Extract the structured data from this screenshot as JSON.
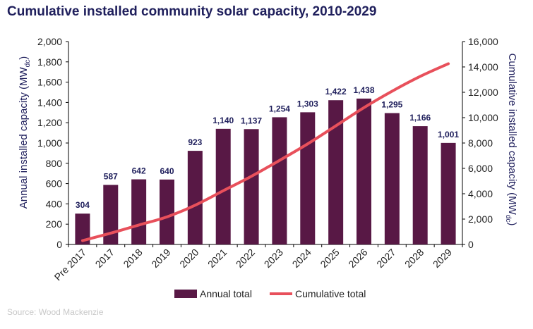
{
  "chart_data": {
    "type": "bar",
    "title": "Cumulative installed community solar capacity, 2010-2029",
    "categories": [
      "Pre 2017",
      "2017",
      "2018",
      "2019",
      "2020",
      "2021",
      "2022",
      "2023",
      "2024",
      "2025",
      "2026",
      "2027",
      "2028",
      "2029"
    ],
    "series": [
      {
        "name": "Annual total",
        "type": "bar",
        "axis": "left",
        "color": "#581845",
        "values": [
          304,
          587,
          642,
          640,
          923,
          1140,
          1137,
          1254,
          1303,
          1422,
          1438,
          1295,
          1166,
          1001
        ]
      },
      {
        "name": "Cumulative total",
        "type": "line",
        "axis": "right",
        "color": "#e8505b",
        "values": [
          304,
          891,
          1533,
          2173,
          3096,
          4236,
          5373,
          6627,
          7930,
          9352,
          10790,
          12085,
          13251,
          14252
        ]
      }
    ],
    "data_labels": [
      "304",
      "587",
      "642",
      "640",
      "923",
      "1,140",
      "1,137",
      "1,254",
      "1,303",
      "1,422",
      "1,438",
      "1,295",
      "1,166",
      "1,001"
    ],
    "ylabel": "Annual installed capacity (MWdc)",
    "ylabel_main": "Annual installed capacity (MW",
    "ylabel_sub": "dc",
    "ylabel_close": ")",
    "y2label": "Cumulative installed capacity (MWdc)",
    "y2label_main": "Cumulative installed capacity (MW",
    "y2label_sub": "dc",
    "y2label_close": ")",
    "ylim": [
      0,
      2000
    ],
    "y2lim": [
      0,
      16000
    ],
    "yticks": [
      "0",
      "200",
      "400",
      "600",
      "800",
      "1,000",
      "1,200",
      "1,400",
      "1,600",
      "1,800",
      "2,000"
    ],
    "y2ticks": [
      "0",
      "2,000",
      "4,000",
      "6,000",
      "8,000",
      "10,000",
      "12,000",
      "14,000",
      "16,000"
    ],
    "grid": false,
    "legend_position": "bottom",
    "source": "Source: Wood Mackenzie"
  }
}
